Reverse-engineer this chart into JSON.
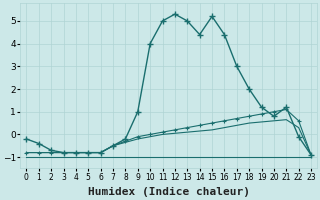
{
  "xlabel": "Humidex (Indice chaleur)",
  "bg_color": "#cce8e8",
  "line_color": "#1a6e6e",
  "x_values": [
    0,
    1,
    2,
    3,
    4,
    5,
    6,
    7,
    8,
    9,
    10,
    11,
    12,
    13,
    14,
    15,
    16,
    17,
    18,
    19,
    20,
    21,
    22,
    23
  ],
  "main_y": [
    -0.2,
    -0.4,
    -0.7,
    -0.8,
    -0.8,
    -0.8,
    -0.8,
    -0.5,
    -0.2,
    1.0,
    4.0,
    5.0,
    5.3,
    5.0,
    4.4,
    5.2,
    4.4,
    3.0,
    2.0,
    1.2,
    0.8,
    1.2,
    -0.1,
    -0.9
  ],
  "line2_y": [
    -0.8,
    -0.8,
    -0.8,
    -0.8,
    -0.8,
    -0.8,
    -0.8,
    -0.5,
    -0.3,
    -0.1,
    0.0,
    0.1,
    0.2,
    0.3,
    0.4,
    0.5,
    0.6,
    0.7,
    0.8,
    0.9,
    1.0,
    1.1,
    0.6,
    -0.9
  ],
  "line3_y": [
    -0.8,
    -0.8,
    -0.8,
    -0.8,
    -0.8,
    -0.8,
    -0.8,
    -0.5,
    -0.35,
    -0.2,
    -0.1,
    0.0,
    0.05,
    0.1,
    0.15,
    0.2,
    0.3,
    0.4,
    0.5,
    0.55,
    0.6,
    0.65,
    0.3,
    -0.9
  ],
  "line4_y": [
    -1.0,
    -1.0,
    -1.0,
    -1.0,
    -1.0,
    -1.0,
    -1.0,
    -1.0,
    -1.0,
    -1.0,
    -1.0,
    -1.0,
    -1.0,
    -1.0,
    -1.0,
    -1.0,
    -1.0,
    -1.0,
    -1.0,
    -1.0,
    -1.0,
    -1.0,
    -1.0,
    -1.0
  ],
  "ylim": [
    -1.5,
    5.8
  ],
  "xlim": [
    -0.5,
    23.5
  ],
  "yticks": [
    -1,
    0,
    1,
    2,
    3,
    4,
    5
  ],
  "xticks": [
    0,
    1,
    2,
    3,
    4,
    5,
    6,
    7,
    8,
    9,
    10,
    11,
    12,
    13,
    14,
    15,
    16,
    17,
    18,
    19,
    20,
    21,
    22,
    23
  ],
  "grid_color": "#b0d4d4",
  "xlabel_fontsize": 8
}
